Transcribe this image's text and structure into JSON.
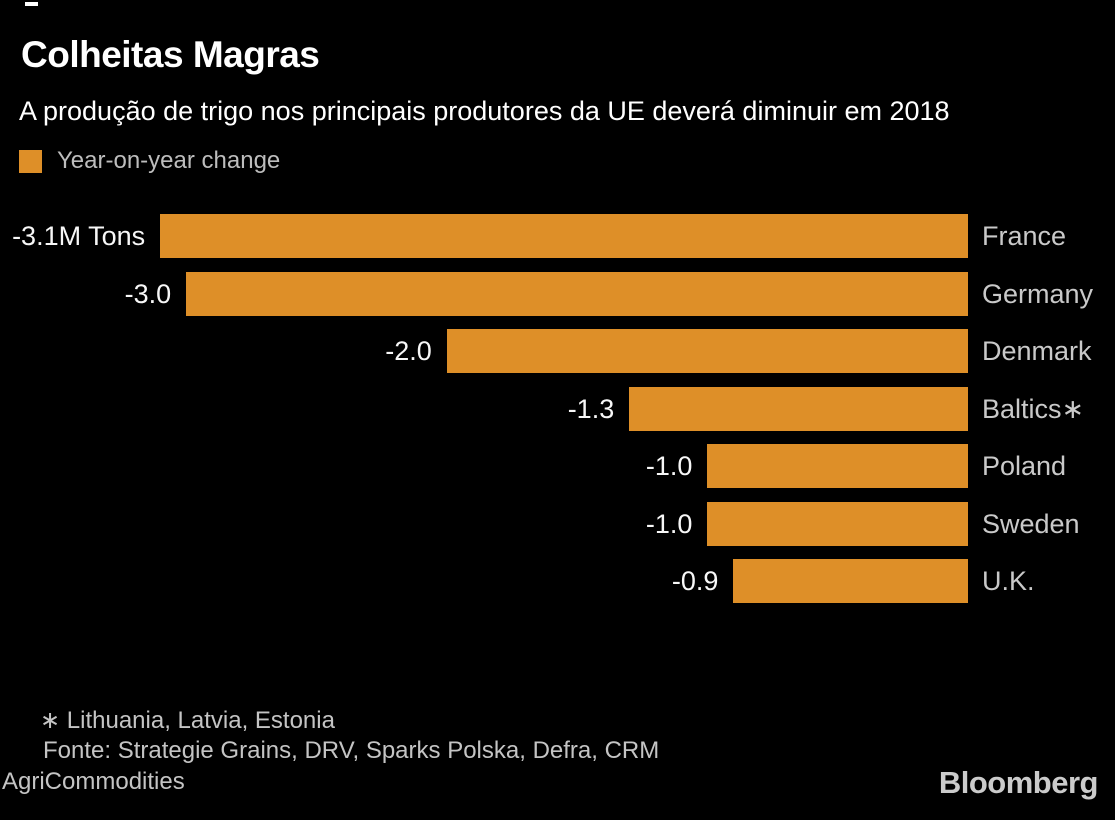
{
  "header": {
    "title": "Colheitas Magras",
    "subtitle": "A produção de trigo nos principais produtores da UE deverá diminuir em 2018"
  },
  "legend": {
    "label": "Year-on-year change",
    "swatch_color": "#DE8F28"
  },
  "chart_data": {
    "type": "bar",
    "orientation": "horizontal",
    "title": "Colheitas Magras",
    "subtitle": "A produção de trigo nos principais produtores da UE deverá diminuir em 2018",
    "legend_entries": [
      "Year-on-year change"
    ],
    "legend_position": "top-left",
    "unit": "M Tons",
    "grid": false,
    "axis_baseline": "right",
    "xlim": [
      -3.35,
      0
    ],
    "categories": [
      "France",
      "Germany",
      "Denmark",
      "Baltics∗",
      "Poland",
      "Sweden",
      "U.K."
    ],
    "values": [
      -3.1,
      -3.0,
      -2.0,
      -1.3,
      -1.0,
      -1.0,
      -0.9
    ],
    "value_labels": [
      "-3.1M Tons",
      "-3.0",
      "-2.0",
      "-1.3",
      "-1.0",
      "-1.0",
      "-0.9"
    ],
    "bar_color": "#DE8F28"
  },
  "footer": {
    "footnote": "∗ Lithuania, Latvia, Estonia",
    "source_line1": "Fonte: Strategie Grains, DRV, Sparks Polska, Defra, CRM",
    "source_line2": "AgriCommodities"
  },
  "brand": {
    "logo_text": "Bloomberg"
  }
}
